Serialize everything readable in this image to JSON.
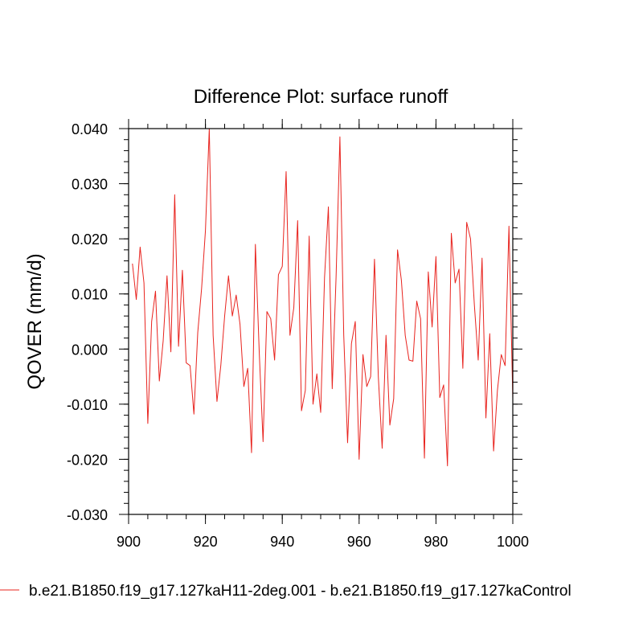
{
  "chart_data": {
    "type": "line",
    "title": "Difference Plot: surface runoff",
    "xlabel": "",
    "ylabel": "QOVER  (mm/d)",
    "xlim": [
      900,
      1000
    ],
    "ylim": [
      -0.03,
      0.04
    ],
    "x_ticks": [
      "900",
      "920",
      "940",
      "960",
      "980",
      "1000"
    ],
    "y_ticks": [
      "-0.030",
      "-0.020",
      "-0.010",
      "0.000",
      "0.010",
      "0.020",
      "0.030",
      "0.040"
    ],
    "grid": false,
    "legend_position": "bottom-left",
    "series": [
      {
        "name": "b.e21.B1850.f19_g17.127kaH11-2deg.001 - b.e21.B1850.f19_g17.127kaControl",
        "color": "#e8231e",
        "x": [
          901,
          902,
          903,
          904,
          905,
          906,
          907,
          908,
          909,
          910,
          911,
          912,
          913,
          914,
          915,
          916,
          917,
          918,
          919,
          920,
          921,
          922,
          923,
          924,
          925,
          926,
          927,
          928,
          929,
          930,
          931,
          932,
          933,
          934,
          935,
          936,
          937,
          938,
          939,
          940,
          941,
          942,
          943,
          944,
          945,
          946,
          947,
          948,
          949,
          950,
          951,
          952,
          953,
          954,
          955,
          956,
          957,
          958,
          959,
          960,
          961,
          962,
          963,
          964,
          965,
          966,
          967,
          968,
          969,
          970,
          971,
          972,
          973,
          974,
          975,
          976,
          977,
          978,
          979,
          980,
          981,
          982,
          983,
          984,
          985,
          986,
          987,
          988,
          989,
          990,
          991,
          992,
          993,
          994,
          995,
          996,
          997,
          998,
          999,
          1000
        ],
        "values": [
          0.0155,
          0.009,
          0.0185,
          0.012,
          -0.0135,
          0.005,
          0.0105,
          -0.0058,
          0.0015,
          0.0133,
          -0.0005,
          0.028,
          0.0005,
          0.0143,
          -0.0025,
          -0.003,
          -0.0118,
          0.003,
          0.011,
          0.0215,
          0.04,
          0.0025,
          -0.0095,
          -0.003,
          0.006,
          0.0133,
          0.006,
          0.0098,
          0.0045,
          -0.0068,
          -0.0035,
          -0.0188,
          0.019,
          -0.0005,
          -0.0168,
          0.0068,
          0.0055,
          -0.002,
          0.0135,
          0.015,
          0.0322,
          0.0025,
          0.0075,
          0.0233,
          -0.0112,
          -0.0075,
          0.0205,
          -0.01,
          -0.0045,
          -0.0115,
          0.013,
          0.0258,
          -0.0072,
          0.013,
          0.0385,
          0.0025,
          -0.017,
          0.001,
          0.005,
          -0.02,
          -0.001,
          -0.0068,
          -0.005,
          0.0163,
          -0.005,
          -0.018,
          0.0025,
          -0.0138,
          -0.009,
          0.018,
          0.0125,
          0.0025,
          -0.002,
          -0.0022,
          0.0087,
          0.0055,
          -0.0198,
          0.014,
          0.004,
          0.0168,
          -0.0088,
          -0.0065,
          -0.0212,
          0.021,
          0.012,
          0.0145,
          -0.0035,
          0.023,
          0.02,
          0.008,
          -0.002,
          0.0165,
          -0.0125,
          0.0028,
          -0.0185,
          -0.0075,
          -0.001,
          -0.003,
          0.0223,
          -0.009
        ]
      }
    ]
  }
}
